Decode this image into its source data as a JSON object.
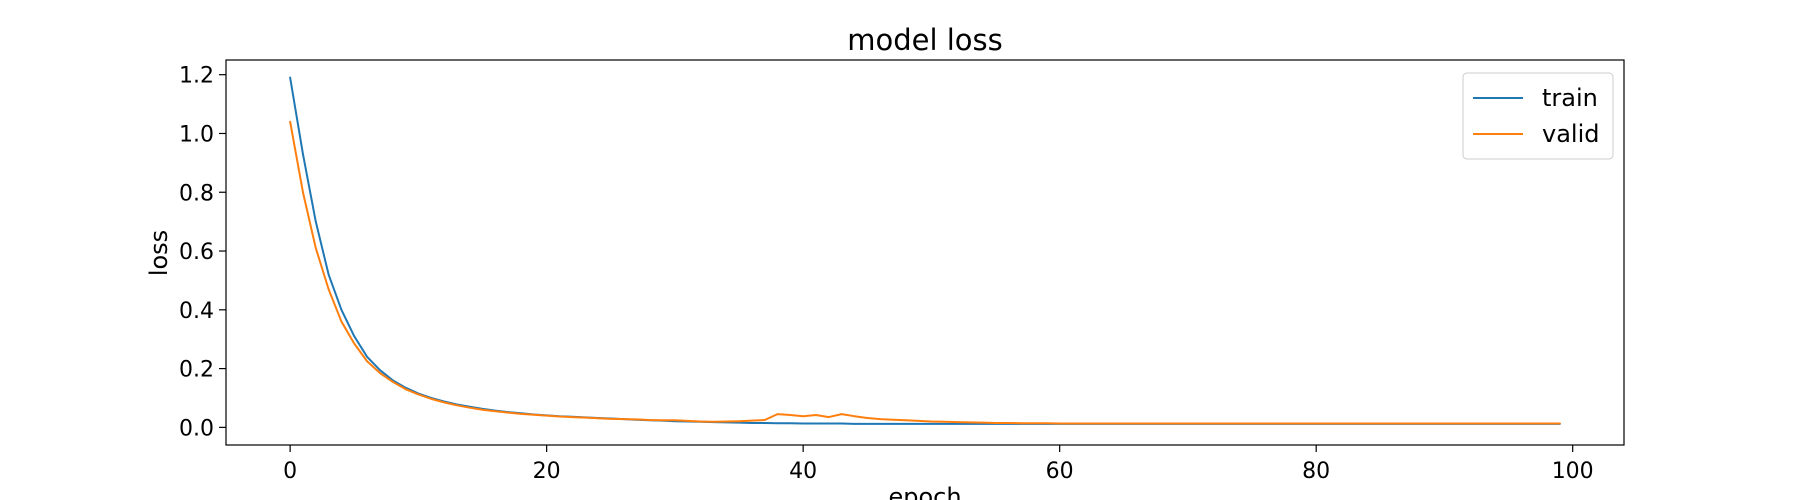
{
  "chart_data": {
    "type": "line",
    "title": "model loss",
    "xlabel": "epoch",
    "ylabel": "loss",
    "xlim": [
      -5,
      104
    ],
    "ylim": [
      -0.06,
      1.25
    ],
    "xticks": [
      0,
      20,
      40,
      60,
      80,
      100
    ],
    "yticks": [
      0.0,
      0.2,
      0.4,
      0.6,
      0.8,
      1.0,
      1.2
    ],
    "xtick_labels": [
      "0",
      "20",
      "40",
      "60",
      "80",
      "100"
    ],
    "ytick_labels": [
      "0.0",
      "0.2",
      "0.4",
      "0.6",
      "0.8",
      "1.0",
      "1.2"
    ],
    "grid": false,
    "legend_position": "top-right",
    "x": [
      0,
      1,
      2,
      3,
      4,
      5,
      6,
      7,
      8,
      9,
      10,
      11,
      12,
      13,
      14,
      15,
      16,
      17,
      18,
      19,
      20,
      21,
      22,
      23,
      24,
      25,
      26,
      27,
      28,
      29,
      30,
      31,
      32,
      33,
      34,
      35,
      36,
      37,
      38,
      39,
      40,
      41,
      42,
      43,
      44,
      45,
      46,
      47,
      48,
      49,
      50,
      51,
      52,
      53,
      54,
      55,
      56,
      57,
      58,
      59,
      60,
      61,
      62,
      63,
      64,
      65,
      66,
      67,
      68,
      69,
      70,
      71,
      72,
      73,
      74,
      75,
      76,
      77,
      78,
      79,
      80,
      81,
      82,
      83,
      84,
      85,
      86,
      87,
      88,
      89,
      90,
      91,
      92,
      93,
      94,
      95,
      96,
      97,
      98,
      99
    ],
    "series": [
      {
        "name": "train",
        "color": "#1f77b4",
        "values": [
          1.19,
          0.93,
          0.7,
          0.52,
          0.4,
          0.31,
          0.24,
          0.195,
          0.16,
          0.135,
          0.115,
          0.1,
          0.088,
          0.078,
          0.07,
          0.063,
          0.057,
          0.052,
          0.048,
          0.044,
          0.041,
          0.038,
          0.036,
          0.034,
          0.032,
          0.03,
          0.028,
          0.026,
          0.024,
          0.023,
          0.021,
          0.02,
          0.019,
          0.018,
          0.017,
          0.016,
          0.015,
          0.015,
          0.014,
          0.014,
          0.013,
          0.013,
          0.013,
          0.013,
          0.012,
          0.012,
          0.012,
          0.012,
          0.012,
          0.012,
          0.012,
          0.012,
          0.012,
          0.012,
          0.012,
          0.012,
          0.012,
          0.012,
          0.012,
          0.012,
          0.012,
          0.012,
          0.012,
          0.012,
          0.012,
          0.012,
          0.012,
          0.012,
          0.012,
          0.012,
          0.012,
          0.012,
          0.012,
          0.012,
          0.012,
          0.012,
          0.012,
          0.012,
          0.012,
          0.012,
          0.012,
          0.012,
          0.012,
          0.012,
          0.012,
          0.012,
          0.012,
          0.012,
          0.012,
          0.012,
          0.012,
          0.012,
          0.012,
          0.012,
          0.012,
          0.012,
          0.012,
          0.012,
          0.012,
          0.012
        ]
      },
      {
        "name": "valid",
        "color": "#ff7f0e",
        "values": [
          1.04,
          0.8,
          0.61,
          0.47,
          0.36,
          0.285,
          0.225,
          0.185,
          0.155,
          0.13,
          0.112,
          0.097,
          0.085,
          0.075,
          0.067,
          0.06,
          0.055,
          0.05,
          0.046,
          0.043,
          0.04,
          0.037,
          0.035,
          0.033,
          0.031,
          0.029,
          0.028,
          0.027,
          0.025,
          0.024,
          0.024,
          0.022,
          0.02,
          0.019,
          0.02,
          0.021,
          0.023,
          0.025,
          0.045,
          0.042,
          0.038,
          0.042,
          0.035,
          0.045,
          0.038,
          0.032,
          0.028,
          0.026,
          0.024,
          0.022,
          0.02,
          0.019,
          0.018,
          0.017,
          0.016,
          0.015,
          0.015,
          0.014,
          0.014,
          0.014,
          0.013,
          0.013,
          0.013,
          0.013,
          0.013,
          0.013,
          0.013,
          0.013,
          0.013,
          0.013,
          0.013,
          0.013,
          0.013,
          0.013,
          0.013,
          0.013,
          0.013,
          0.013,
          0.013,
          0.013,
          0.013,
          0.013,
          0.013,
          0.013,
          0.013,
          0.013,
          0.013,
          0.013,
          0.013,
          0.013,
          0.013,
          0.013,
          0.013,
          0.013,
          0.013,
          0.013,
          0.013,
          0.013,
          0.013,
          0.013
        ]
      }
    ]
  }
}
